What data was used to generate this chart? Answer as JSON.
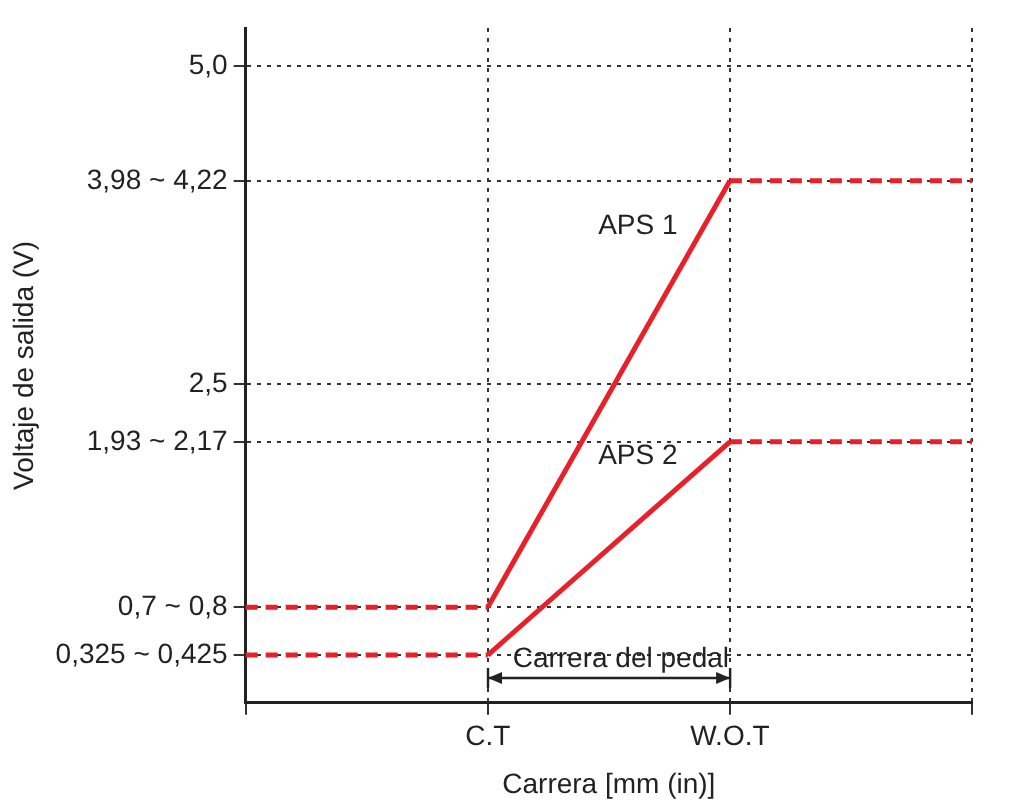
{
  "chart_data": {
    "type": "line",
    "xlabel": "Carrera [mm (in)]",
    "ylabel": "Voltaje de salida (V)",
    "categories": [
      null,
      "C.T",
      "W.O.T",
      null
    ],
    "ylim": [
      0,
      5.3
    ],
    "yticks": [
      {
        "value": 0.375,
        "label": "0,325 ~ 0,425"
      },
      {
        "value": 0.75,
        "label": "0,7 ~ 0,8"
      },
      {
        "value": 2.05,
        "label": "1,93 ~ 2,17"
      },
      {
        "value": 2.5,
        "label": "2,5"
      },
      {
        "value": 4.1,
        "label": "3,98 ~ 4,22"
      },
      {
        "value": 5,
        "label": "5,0"
      }
    ],
    "grid": true,
    "legend": false,
    "marker": "none",
    "series": [
      {
        "name": "APS 1",
        "color": "#e8202a",
        "values": [
          null,
          0.75,
          4.1,
          null
        ],
        "line_style": "solid"
      },
      {
        "name": "APS 2",
        "color": "#e8202a",
        "values": [
          null,
          0.375,
          2.05,
          null
        ],
        "line_style": "solid"
      },
      {
        "color": "#e8202a",
        "values": [
          0.75,
          0.75,
          null,
          null
        ],
        "line_style": "dashed"
      },
      {
        "color": "#e8202a",
        "values": [
          null,
          null,
          4.1,
          4.1
        ],
        "line_style": "dashed"
      },
      {
        "color": "#e8202a",
        "values": [
          0.375,
          0.375,
          null,
          null
        ],
        "line_style": "dashed"
      },
      {
        "color": "#e8202a",
        "values": [
          null,
          null,
          2.05,
          2.05
        ],
        "line_style": "dashed"
      }
    ],
    "annotations": [
      "Carrera del pedal"
    ]
  }
}
